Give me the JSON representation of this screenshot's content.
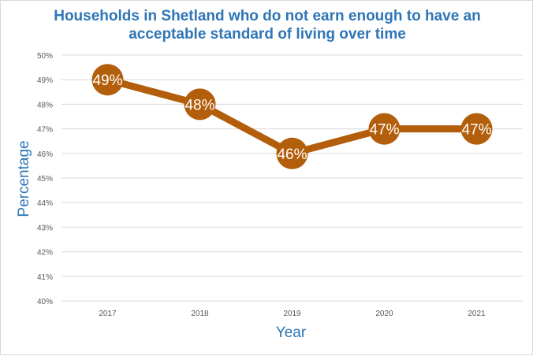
{
  "chart_data": {
    "type": "line",
    "title": "Households in Shetland who do not earn enough to have an acceptable standard of living over time",
    "title_lines": [
      "Households in Shetland who do not earn enough to have an",
      "acceptable standard of living over time"
    ],
    "xlabel": "Year",
    "ylabel": "Percentage",
    "categories": [
      "2017",
      "2018",
      "2019",
      "2020",
      "2021"
    ],
    "values": [
      49,
      48,
      46,
      47,
      47
    ],
    "data_labels": [
      "49%",
      "48%",
      "46%",
      "47%",
      "47%"
    ],
    "ylim": [
      40,
      50
    ],
    "yticks": [
      "40%",
      "41%",
      "42%",
      "43%",
      "44%",
      "45%",
      "46%",
      "47%",
      "48%",
      "49%",
      "50%"
    ],
    "grid": true,
    "legend": "none",
    "colors": {
      "series": "#b35e0a",
      "title": "#2e75b6",
      "grid": "#d9d9d9"
    }
  }
}
